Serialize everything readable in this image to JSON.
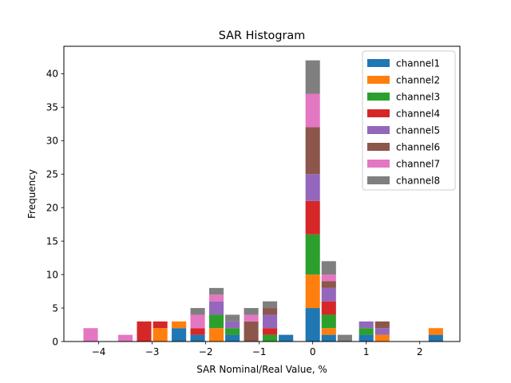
{
  "chart_data": {
    "type": "bar",
    "stacked": true,
    "title": "SAR Histogram",
    "xlabel": "SAR Nominal/Real Value, %",
    "ylabel": "Frequency",
    "xlim": [
      -4.65,
      2.75
    ],
    "ylim": [
      0,
      44.1
    ],
    "xticks": [
      -4,
      -3,
      -2,
      -1,
      0,
      1,
      2
    ],
    "xtick_labels": [
      "−4",
      "−3",
      "−2",
      "−1",
      "0",
      "1",
      "2"
    ],
    "yticks": [
      0,
      5,
      10,
      15,
      20,
      25,
      30,
      35,
      40
    ],
    "ytick_labels": [
      "0",
      "5",
      "10",
      "15",
      "20",
      "25",
      "30",
      "35",
      "40"
    ],
    "bar_width": 0.27,
    "legend_position": "top-right",
    "x": [
      -4.15,
      -3.5,
      -3.15,
      -2.85,
      -2.5,
      -2.15,
      -1.8,
      -1.5,
      -1.15,
      -0.8,
      -0.5,
      0.0,
      0.3,
      0.6,
      1.0,
      1.3,
      2.3
    ],
    "series": [
      {
        "name": "channel1",
        "color": "#1f77b4",
        "values": [
          0,
          0,
          0,
          0,
          2,
          1,
          0,
          1,
          0,
          0,
          1,
          5,
          1,
          0,
          1,
          0,
          1
        ]
      },
      {
        "name": "channel2",
        "color": "#ff7f0e",
        "values": [
          0,
          0,
          0,
          2,
          1,
          0,
          2,
          0,
          0,
          0,
          0,
          5,
          1,
          0,
          0,
          1,
          1
        ]
      },
      {
        "name": "channel3",
        "color": "#2ca02c",
        "values": [
          0,
          0,
          0,
          0,
          0,
          0,
          2,
          1,
          0,
          1,
          0,
          6,
          2,
          0,
          1,
          0,
          0
        ]
      },
      {
        "name": "channel4",
        "color": "#d62728",
        "values": [
          0,
          0,
          3,
          1,
          0,
          1,
          0,
          0,
          0,
          1,
          0,
          5,
          2,
          0,
          0,
          0,
          0
        ]
      },
      {
        "name": "channel5",
        "color": "#9467bd",
        "values": [
          0,
          0,
          0,
          0,
          0,
          0,
          2,
          1,
          0,
          2,
          0,
          4,
          2,
          0,
          1,
          1,
          0
        ]
      },
      {
        "name": "channel6",
        "color": "#8c564b",
        "values": [
          0,
          0,
          0,
          0,
          0,
          0,
          0,
          0,
          3,
          1,
          0,
          7,
          1,
          0,
          0,
          1,
          0
        ]
      },
      {
        "name": "channel7",
        "color": "#e377c2",
        "values": [
          2,
          1,
          0,
          0,
          0,
          2,
          1,
          0,
          1,
          0,
          0,
          5,
          1,
          0,
          0,
          0,
          0
        ]
      },
      {
        "name": "channel8",
        "color": "#7f7f7f",
        "values": [
          0,
          0,
          0,
          0,
          0,
          1,
          1,
          1,
          1,
          1,
          0,
          5,
          2,
          1,
          0,
          0,
          0
        ]
      }
    ]
  }
}
